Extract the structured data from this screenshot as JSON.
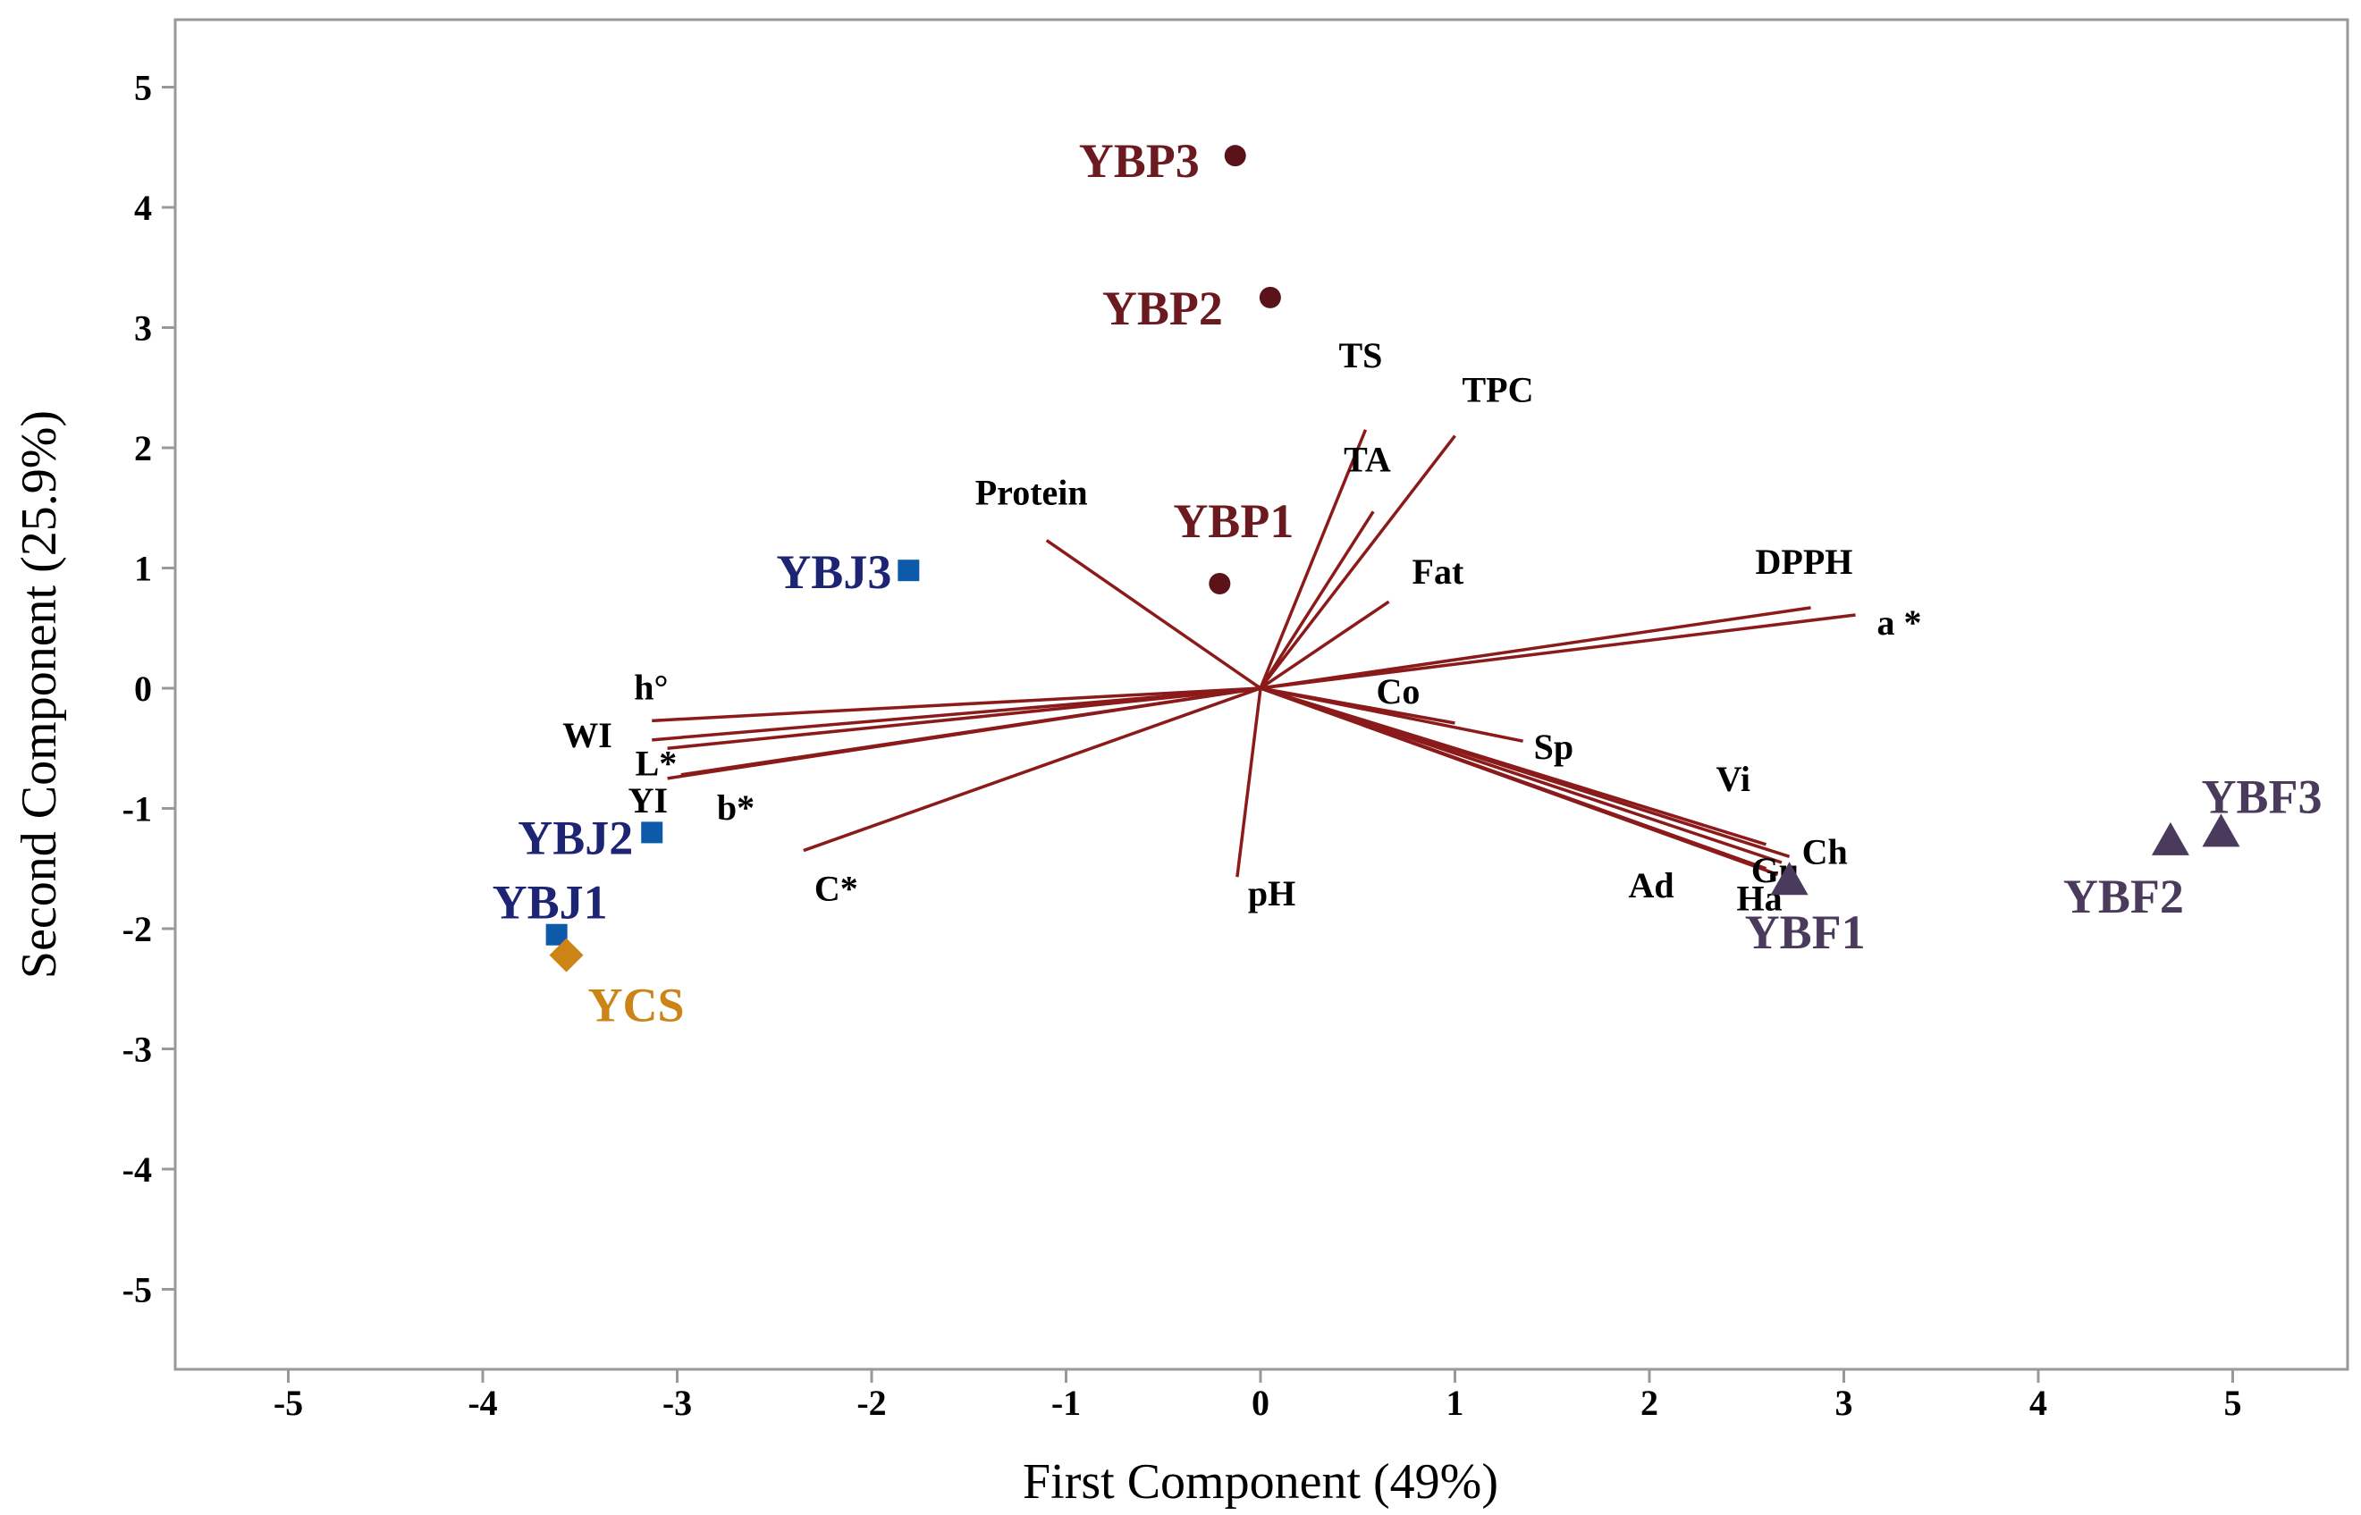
{
  "chart_data": {
    "type": "biplot",
    "xlabel": "First Component (49%)",
    "ylabel": "Second Component (25.9%)",
    "xlim": [
      -5.6,
      5.6
    ],
    "ylim": [
      -5.6,
      5.6
    ],
    "xticks": [
      "-5",
      "-4",
      "-3",
      "-2",
      "-1",
      "0",
      "1",
      "2",
      "3",
      "4",
      "5"
    ],
    "yticks": [
      "5",
      "4",
      "3",
      "2",
      "1",
      "0",
      "-1",
      "-2",
      "-3",
      "-4",
      "-5"
    ],
    "grid": false,
    "loadings": [
      {
        "name": "TS",
        "x": 0.54,
        "y": 2.15
      },
      {
        "name": "TPC",
        "x": 1.0,
        "y": 2.1
      },
      {
        "name": "TA",
        "x": 0.58,
        "y": 1.47
      },
      {
        "name": "Fat",
        "x": 0.66,
        "y": 0.72
      },
      {
        "name": "Protein",
        "x": -1.1,
        "y": 1.23
      },
      {
        "name": "DPPH",
        "x": 2.83,
        "y": 0.67
      },
      {
        "name": "a *",
        "x": 3.06,
        "y": 0.61
      },
      {
        "name": "Co",
        "x": 1.0,
        "y": -0.29
      },
      {
        "name": "Sp",
        "x": 1.35,
        "y": -0.44
      },
      {
        "name": "Vi",
        "x": 2.6,
        "y": -1.3
      },
      {
        "name": "Ch",
        "x": 2.72,
        "y": -1.4
      },
      {
        "name": "Gu",
        "x": 2.68,
        "y": -1.45
      },
      {
        "name": "Ha",
        "x": 2.66,
        "y": -1.55
      },
      {
        "name": "Ad",
        "x": 2.6,
        "y": -1.5
      },
      {
        "name": "pH",
        "x": -0.12,
        "y": -1.57
      },
      {
        "name": "h°",
        "x": -3.13,
        "y": -0.27
      },
      {
        "name": "WI",
        "x": -3.13,
        "y": -0.43
      },
      {
        "name": "L*",
        "x": -3.05,
        "y": -0.5
      },
      {
        "name": "YI",
        "x": -3.05,
        "y": -0.75
      },
      {
        "name": "b*",
        "x": -2.98,
        "y": -0.72
      },
      {
        "name": "C*",
        "x": -2.35,
        "y": -1.35
      }
    ],
    "scores": [
      {
        "name": "YBP3",
        "group": "YBP",
        "x": -0.13,
        "y": 4.43
      },
      {
        "name": "YBP2",
        "group": "YBP",
        "x": 0.05,
        "y": 3.25
      },
      {
        "name": "YBP1",
        "group": "YBP",
        "x": -0.21,
        "y": 0.87
      },
      {
        "name": "YBJ3",
        "group": "YBJ",
        "x": -1.81,
        "y": 0.98
      },
      {
        "name": "YBJ2",
        "group": "YBJ",
        "x": -3.13,
        "y": -1.2
      },
      {
        "name": "YBJ1",
        "group": "YBJ",
        "x": -3.62,
        "y": -2.05
      },
      {
        "name": "YCS",
        "group": "YCS",
        "x": -3.57,
        "y": -2.22
      },
      {
        "name": "YBF1",
        "group": "YBF",
        "x": 2.72,
        "y": -1.6
      },
      {
        "name": "YBF2",
        "group": "YBF",
        "x": 4.68,
        "y": -1.27
      },
      {
        "name": "YBF3",
        "group": "YBF",
        "x": 4.94,
        "y": -1.2
      }
    ],
    "groups": {
      "YBP": {
        "marker": "circle",
        "marker_color": "#5c1219",
        "label_color": "#6b1a1f"
      },
      "YBJ": {
        "marker": "square",
        "marker_color": "#0d5aab",
        "label_color": "#1c2473"
      },
      "YCS": {
        "marker": "diamond",
        "marker_color": "#cc8416",
        "label_color": "#cc8416"
      },
      "YBF": {
        "marker": "triangle",
        "marker_color": "#4a3a5c",
        "label_color": "#4a3a5c"
      }
    },
    "vector_color": "#8b1a1a",
    "frame_color": "#999999"
  }
}
